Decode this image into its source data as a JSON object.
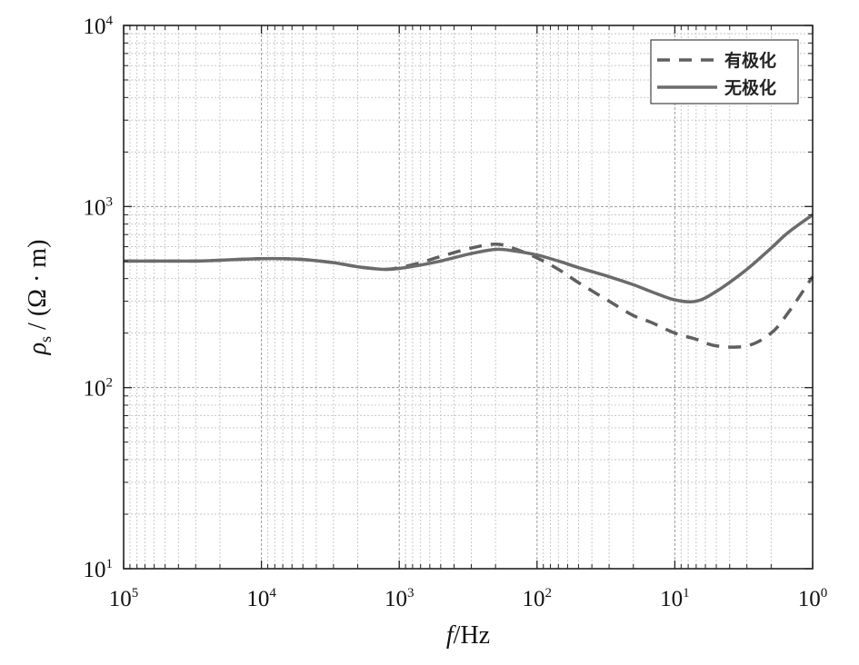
{
  "chart_data": {
    "type": "line",
    "xscale": "log",
    "yscale": "log",
    "x_reversed": true,
    "xlim": [
      100000,
      1
    ],
    "ylim": [
      10,
      10000
    ],
    "grid": true,
    "legend_position": "top-right",
    "xlabel": {
      "var": "f",
      "unit": "/Hz"
    },
    "ylabel": {
      "var": "ρ",
      "sub": "s",
      "unit": " / (Ω · m)"
    },
    "xticks": [
      {
        "value": 100000,
        "base": "10",
        "exp": "5"
      },
      {
        "value": 10000,
        "base": "10",
        "exp": "4"
      },
      {
        "value": 1000,
        "base": "10",
        "exp": "3"
      },
      {
        "value": 100,
        "base": "10",
        "exp": "2"
      },
      {
        "value": 10,
        "base": "10",
        "exp": "1"
      },
      {
        "value": 1,
        "base": "10",
        "exp": "0"
      }
    ],
    "yticks": [
      {
        "value": 10,
        "base": "10",
        "exp": "1"
      },
      {
        "value": 100,
        "base": "10",
        "exp": "2"
      },
      {
        "value": 1000,
        "base": "10",
        "exp": "3"
      },
      {
        "value": 10000,
        "base": "10",
        "exp": "4"
      }
    ],
    "series": [
      {
        "name": "有极化",
        "style": "dashed",
        "color": "#5f5f5f",
        "x": [
          100000,
          50000,
          30000,
          20000,
          15000,
          10000,
          7000,
          5000,
          3000,
          2000,
          1300,
          1000,
          700,
          500,
          300,
          200,
          150,
          100,
          70,
          50,
          30,
          20,
          15,
          10,
          7,
          5,
          3,
          2,
          1.5,
          1
        ],
        "y": [
          500,
          500,
          500,
          505,
          510,
          515,
          515,
          510,
          490,
          465,
          450,
          460,
          490,
          530,
          590,
          620,
          590,
          520,
          450,
          380,
          300,
          250,
          230,
          200,
          185,
          170,
          170,
          200,
          260,
          410
        ]
      },
      {
        "name": "无极化",
        "style": "solid",
        "color": "#6b6b6b",
        "x": [
          100000,
          50000,
          30000,
          20000,
          15000,
          10000,
          7000,
          5000,
          3000,
          2000,
          1300,
          1000,
          700,
          500,
          300,
          200,
          150,
          100,
          70,
          50,
          30,
          20,
          15,
          10,
          7,
          5,
          3,
          2,
          1.5,
          1
        ],
        "y": [
          500,
          500,
          500,
          505,
          510,
          515,
          515,
          510,
          490,
          465,
          450,
          455,
          475,
          500,
          550,
          580,
          570,
          540,
          500,
          460,
          410,
          370,
          340,
          305,
          300,
          340,
          450,
          590,
          720,
          900
        ]
      }
    ]
  }
}
